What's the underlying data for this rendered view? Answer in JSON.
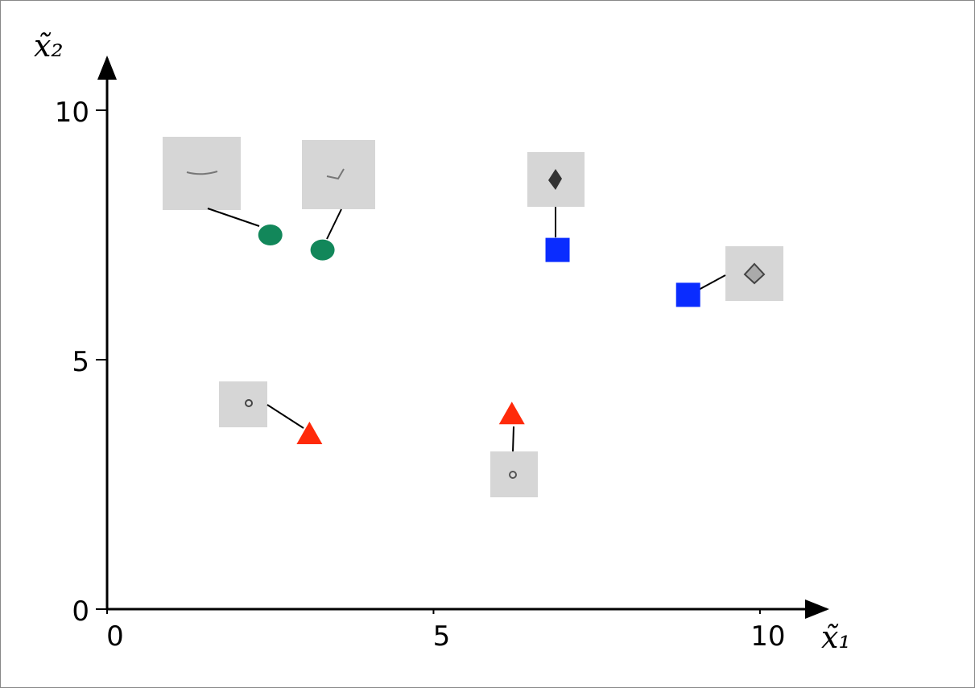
{
  "chart_data": {
    "type": "scatter",
    "xlabel": "x̃₁",
    "ylabel": "x̃₂",
    "xlim": [
      0,
      11
    ],
    "ylim": [
      0,
      11
    ],
    "xticks": [
      0,
      5,
      10
    ],
    "yticks": [
      0,
      5,
      10
    ],
    "series": [
      {
        "marker": "circle",
        "color": "#12875a",
        "x": [
          2.5,
          3.3
        ],
        "values": [
          7.5,
          7.2
        ]
      },
      {
        "marker": "square",
        "color": "#0a2cff",
        "x": [
          6.9,
          8.9
        ],
        "values": [
          7.2,
          6.3
        ]
      },
      {
        "marker": "triangle",
        "color": "#ff2a0a",
        "x": [
          3.1,
          6.2
        ],
        "values": [
          3.5,
          3.9
        ]
      }
    ]
  }
}
